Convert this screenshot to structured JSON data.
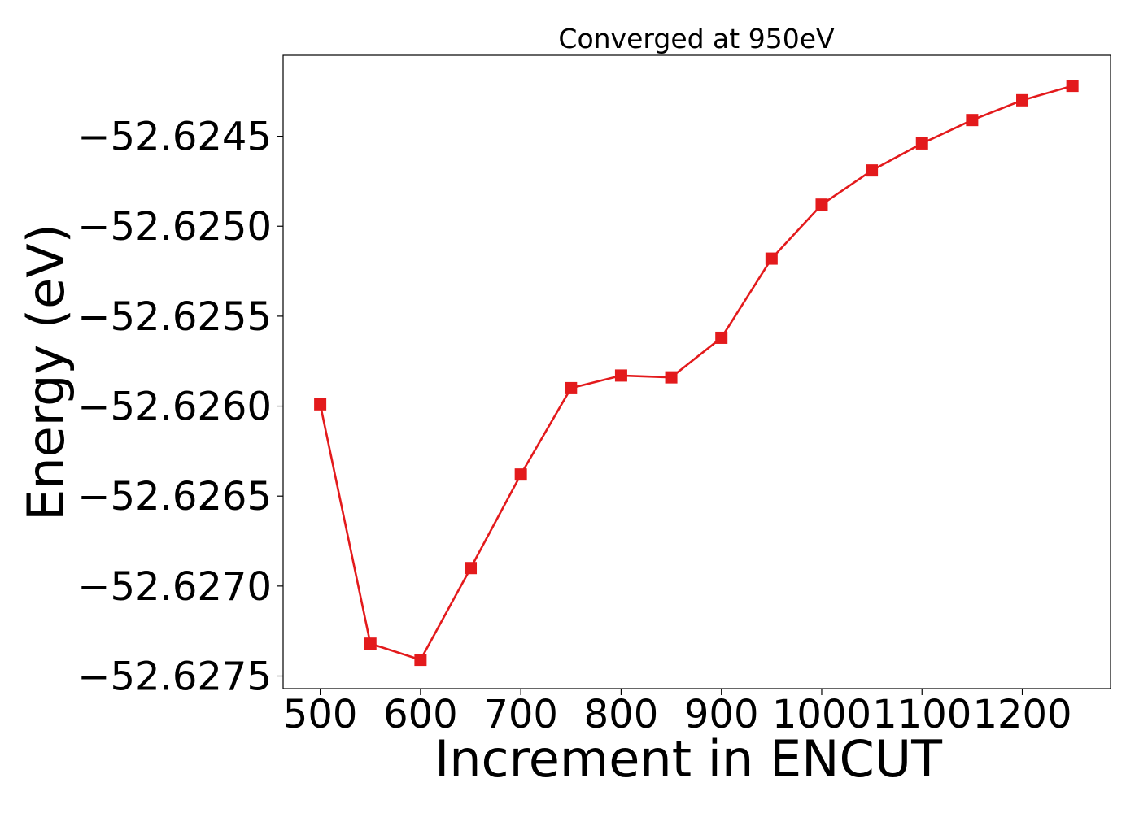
{
  "chart_data": {
    "type": "line",
    "title": "Converged at 950eV",
    "xlabel": "Increment in ENCUT",
    "ylabel": "Energy (eV)",
    "x": [
      500,
      550,
      600,
      650,
      700,
      750,
      800,
      850,
      900,
      950,
      1000,
      1050,
      1100,
      1150,
      1200,
      1250
    ],
    "series": [
      {
        "values": [
          -52.62599,
          -52.62732,
          -52.62741,
          -52.6269,
          -52.62638,
          -52.6259,
          -52.62583,
          -52.62584,
          -52.62562,
          -52.62518,
          -52.62488,
          -52.62469,
          -52.62454,
          -52.62441,
          -52.6243,
          -52.62422
        ],
        "color": "#e31a1c",
        "marker": "square"
      }
    ],
    "xticks": [
      500,
      600,
      700,
      800,
      900,
      1000,
      1100,
      1200
    ],
    "xtick_labels": [
      "500",
      "600",
      "700",
      "800",
      "900",
      "1000",
      "1100",
      "1200"
    ],
    "yticks": [
      -52.6245,
      -52.625,
      -52.6255,
      -52.626,
      -52.6265,
      -52.627,
      -52.6275
    ],
    "ytick_labels": [
      "−52.6245",
      "−52.6250",
      "−52.6255",
      "−52.6260",
      "−52.6265",
      "−52.6270",
      "−52.6275"
    ],
    "xlim": [
      463,
      1288
    ],
    "ylim": [
      -52.62757,
      -52.62405
    ],
    "grid": false,
    "legend": "none"
  }
}
